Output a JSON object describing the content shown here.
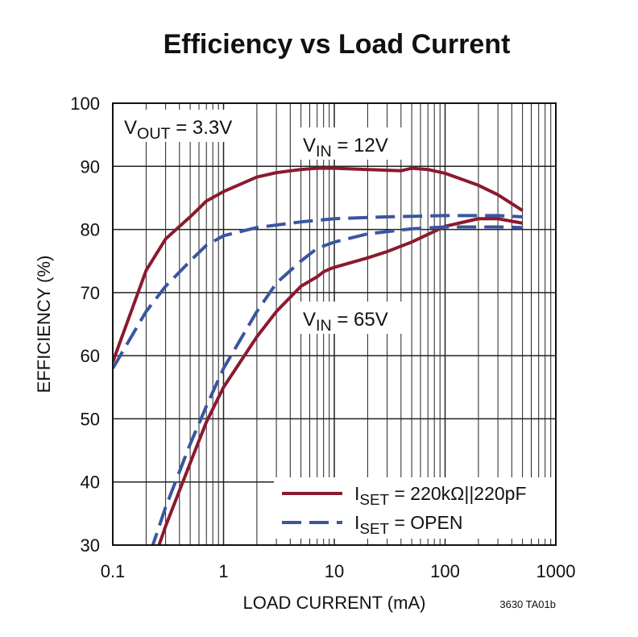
{
  "chart_data": {
    "type": "line",
    "title": "Efficiency vs Load Current",
    "xlabel": "LOAD CURRENT (mA)",
    "ylabel": "EFFICIENCY (%)",
    "note": "3630 TA01b",
    "xscale": "log",
    "xlim": [
      0.1,
      1000
    ],
    "ylim": [
      30,
      100
    ],
    "xticks": [
      0.1,
      1,
      10,
      100,
      1000
    ],
    "xminor_ticks": [
      0.2,
      0.3,
      0.4,
      0.5,
      0.6,
      0.7,
      0.8,
      0.9,
      2,
      3,
      4,
      5,
      6,
      7,
      8,
      9,
      20,
      30,
      40,
      50,
      60,
      70,
      80,
      90,
      200,
      300,
      400,
      500,
      600,
      700,
      800,
      900
    ],
    "yticks": [
      30,
      40,
      50,
      60,
      70,
      80,
      90,
      100
    ],
    "grid": true,
    "annotations": [
      {
        "text": "V",
        "sub": "OUT",
        "rest": " = 3.3V"
      },
      {
        "text": "V",
        "sub": "IN",
        "rest": " = 12V"
      },
      {
        "text": "V",
        "sub": "IN",
        "rest": " = 65V"
      }
    ],
    "legend": [
      {
        "text": "I",
        "sub": "SET",
        "rest": " = 220kΩ||220pF",
        "color": "#8b1a2e",
        "dash": false
      },
      {
        "text": "I",
        "sub": "SET",
        "rest": " = OPEN",
        "color": "#3a56a0",
        "dash": true
      }
    ],
    "series": [
      {
        "color": "#8b1a2e",
        "dash": false,
        "x": [
          0.1,
          0.2,
          0.3,
          0.5,
          0.7,
          1,
          2,
          3,
          5,
          7,
          10,
          20,
          40,
          50,
          70,
          100,
          200,
          300,
          500
        ],
        "values": [
          59,
          73.5,
          78.5,
          82,
          84.5,
          86,
          88.3,
          89,
          89.5,
          89.7,
          89.7,
          89.5,
          89.3,
          89.7,
          89.5,
          88.9,
          87,
          85.5,
          83
        ]
      },
      {
        "color": "#3a56a0",
        "dash": true,
        "x": [
          0.1,
          0.2,
          0.3,
          0.5,
          0.7,
          1,
          2,
          5,
          10,
          30,
          100,
          300,
          500
        ],
        "values": [
          58,
          67,
          71,
          75,
          77.5,
          79,
          80.3,
          81.2,
          81.7,
          82,
          82.2,
          82.2,
          82
        ]
      },
      {
        "color": "#8b1a2e",
        "dash": false,
        "x": [
          0.25,
          0.3,
          0.5,
          0.7,
          1,
          2,
          3,
          5,
          7,
          8,
          9,
          10,
          20,
          30,
          50,
          100,
          200,
          300,
          500
        ],
        "values": [
          29,
          33,
          43,
          49.5,
          55,
          63,
          67,
          71,
          72.5,
          73.3,
          73.7,
          74,
          75.5,
          76.5,
          78,
          80.5,
          81.7,
          81.7,
          81
        ]
      },
      {
        "color": "#3a56a0",
        "dash": true,
        "x": [
          0.22,
          0.3,
          0.5,
          0.7,
          1,
          2,
          3,
          5,
          7,
          10,
          20,
          50,
          100,
          300,
          500
        ],
        "values": [
          29,
          36,
          46,
          52,
          58,
          67,
          71.5,
          75,
          77,
          78,
          79.3,
          80.1,
          80.4,
          80.4,
          80.3
        ]
      }
    ]
  }
}
